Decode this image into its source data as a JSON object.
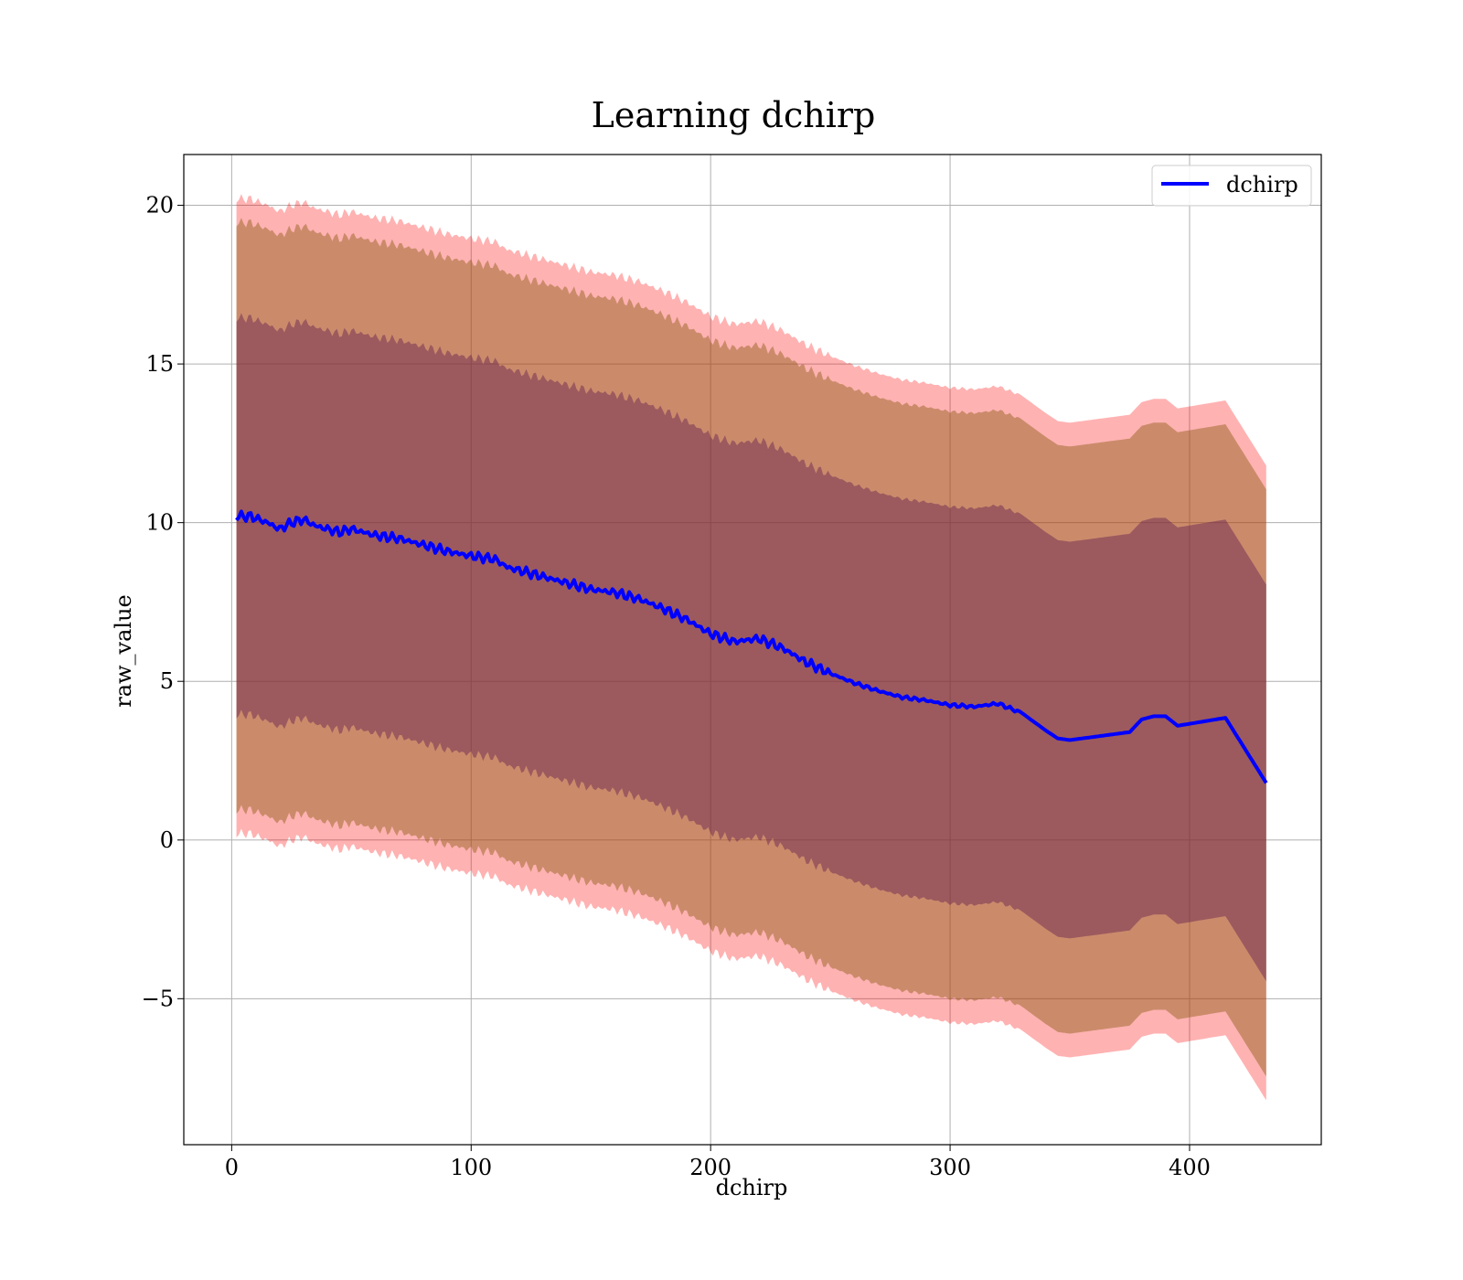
{
  "chart_data": {
    "type": "area",
    "title": "Learning dchirp",
    "xlabel": "dchirp",
    "ylabel": "raw_value",
    "xlim": [
      -20,
      455
    ],
    "ylim": [
      -9.6,
      21.6
    ],
    "xticks": [
      0,
      100,
      200,
      300,
      400
    ],
    "xtick_labels": [
      "0",
      "100",
      "200",
      "300",
      "400"
    ],
    "yticks": [
      -5,
      0,
      5,
      10,
      15,
      20
    ],
    "ytick_labels": [
      "−5",
      "0",
      "5",
      "10",
      "15",
      "20"
    ],
    "grid": true,
    "legend_position": "top-right",
    "legend": [
      {
        "label": "dchirp",
        "color": "#0000ff"
      }
    ],
    "band_colors": {
      "outer": "rgba(255,0,0,0.3)",
      "middle": "rgba(139,90,20,0.45)",
      "inner": "rgba(100,30,80,0.45)"
    },
    "line_color": "#0000ff",
    "mean": {
      "name": "dchirp",
      "x": [
        2,
        8,
        15,
        20,
        25,
        30,
        35,
        40,
        45,
        50,
        55,
        60,
        70,
        80,
        90,
        100,
        110,
        115,
        120,
        130,
        140,
        150,
        160,
        170,
        180,
        190,
        200,
        210,
        220,
        230,
        240,
        250,
        260,
        270,
        280,
        290,
        300,
        310,
        320,
        330,
        340,
        345,
        350,
        360,
        375,
        380,
        385,
        390,
        395,
        415,
        432
      ],
      "values": [
        10.2,
        10.2,
        10.0,
        9.8,
        10.0,
        10.1,
        9.9,
        9.8,
        9.7,
        9.8,
        9.7,
        9.6,
        9.5,
        9.3,
        9.1,
        8.95,
        8.85,
        8.6,
        8.5,
        8.3,
        8.1,
        7.9,
        7.8,
        7.6,
        7.3,
        6.95,
        6.5,
        6.25,
        6.35,
        6.05,
        5.6,
        5.25,
        4.95,
        4.7,
        4.5,
        4.4,
        4.25,
        4.2,
        4.3,
        4.0,
        3.45,
        3.2,
        3.15,
        3.25,
        3.4,
        3.8,
        3.9,
        3.9,
        3.6,
        3.85,
        1.8
      ]
    },
    "outer_band": {
      "upper_offset": 10.0,
      "lower_offset": -10.0
    },
    "middle_band": {
      "upper_offset": 9.25,
      "lower_offset": -9.25
    },
    "inner_band": {
      "upper_offset": 6.25,
      "lower_offset": -6.25
    }
  }
}
